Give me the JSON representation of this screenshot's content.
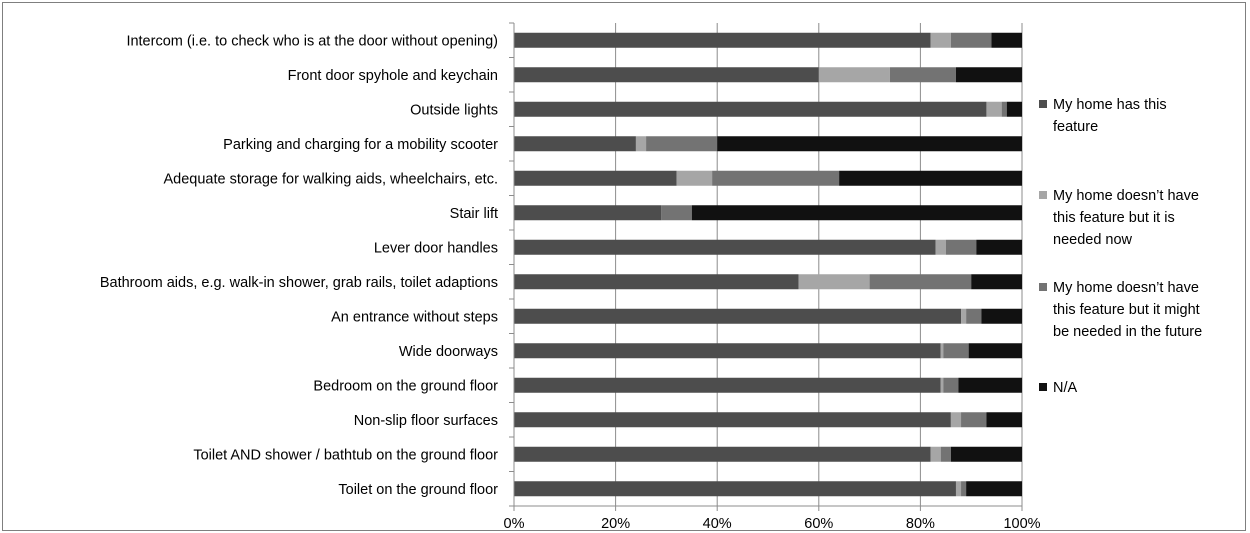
{
  "chart_data": {
    "type": "bar",
    "orientation": "horizontal",
    "stacked": "percent",
    "title": "",
    "xlabel": "",
    "ylabel": "",
    "xlim": [
      0,
      100
    ],
    "x_ticks": [
      "0%",
      "20%",
      "40%",
      "60%",
      "80%",
      "100%"
    ],
    "grid": "vertical",
    "legend_position": "right",
    "categories": [
      "Intercom (i.e. to check who is at the door without opening)",
      "Front door spyhole and keychain",
      "Outside lights",
      "Parking and charging for a mobility scooter",
      "Adequate storage for walking aids, wheelchairs, etc.",
      "Stair lift",
      "Lever door handles",
      "Bathroom aids, e.g. walk-in shower, grab rails, toilet adaptions",
      "An entrance without steps",
      "Wide doorways",
      "Bedroom on the ground floor",
      "Non-slip floor surfaces",
      "Toilet AND shower / bathtub on the ground floor",
      "Toilet on the ground floor"
    ],
    "series": [
      {
        "name": "My home has this feature",
        "color": "#4d4d4d",
        "values": [
          82,
          60,
          93,
          24,
          32,
          29,
          83,
          56,
          88,
          84,
          84,
          86,
          82,
          87
        ]
      },
      {
        "name": "My home doesn’t have this feature but it is needed now",
        "color": "#a6a6a6",
        "values": [
          4,
          14,
          3,
          2,
          7,
          0,
          2,
          14,
          1,
          0.5,
          0.5,
          2,
          2,
          1
        ]
      },
      {
        "name": "My home doesn’t have this feature but it might be needed in the future",
        "color": "#737373",
        "values": [
          8,
          13,
          1,
          14,
          25,
          6,
          6,
          20,
          3,
          5,
          3,
          5,
          2,
          1
        ]
      },
      {
        "name": "N/A",
        "color": "#111111",
        "values": [
          6,
          13,
          3,
          60,
          36,
          65,
          9,
          10,
          8,
          10.5,
          12.5,
          7,
          14,
          11
        ]
      }
    ]
  }
}
